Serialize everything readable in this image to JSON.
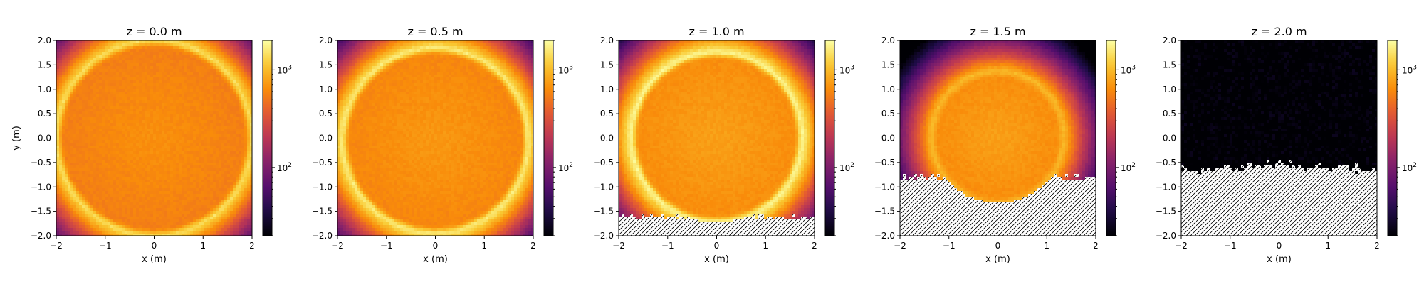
{
  "figure": {
    "xlabel": "x (m)",
    "ylabel": "y (m)",
    "colormap": "inferno",
    "colorbar_scale": "log",
    "colorbar_ticks": [
      {
        "value": 100,
        "label": "10",
        "exp": "2"
      },
      {
        "value": 1000,
        "label": "10",
        "exp": "3"
      }
    ],
    "colorbar_range": [
      20,
      2000
    ],
    "masked_color": "#ffffff",
    "masked_hatch_color": "#000000"
  },
  "chart_data": [
    {
      "type": "heatmap",
      "title": "z = 0.0 m",
      "xlabel": "x (m)",
      "ylabel": "y (m)",
      "xlim": [
        -2,
        2
      ],
      "ylim": [
        -2,
        2
      ],
      "xticks": [
        -2,
        -1,
        0,
        1,
        2
      ],
      "yticks": [
        -2.0,
        -1.5,
        -1.0,
        -0.5,
        0.0,
        0.5,
        1.0,
        1.5,
        2.0
      ],
      "disk": {
        "center": [
          0,
          0
        ],
        "radius": 2.0,
        "interior_value": 600,
        "rim_value": 1400
      },
      "outer_halo_value": 60,
      "masked_below_y": null
    },
    {
      "type": "heatmap",
      "title": "z = 0.5 m",
      "xlabel": "x (m)",
      "ylabel": "",
      "xlim": [
        -2,
        2
      ],
      "ylim": [
        -2,
        2
      ],
      "xticks": [
        -2,
        -1,
        0,
        1,
        2
      ],
      "yticks": [
        -2.0,
        -1.5,
        -1.0,
        -0.5,
        0.0,
        0.5,
        1.0,
        1.5,
        2.0
      ],
      "disk": {
        "center": [
          0,
          -0.05
        ],
        "radius": 1.9,
        "interior_value": 650,
        "rim_value": 1600
      },
      "outer_halo_value": 50,
      "masked_below_y": null
    },
    {
      "type": "heatmap",
      "title": "z = 1.0 m",
      "xlabel": "x (m)",
      "ylabel": "",
      "xlim": [
        -2,
        2
      ],
      "ylim": [
        -2,
        2
      ],
      "xticks": [
        -2,
        -1,
        0,
        1,
        2
      ],
      "yticks": [
        -2.0,
        -1.5,
        -1.0,
        -0.5,
        0.0,
        0.5,
        1.0,
        1.5,
        2.0
      ],
      "disk": {
        "center": [
          0,
          0.02
        ],
        "radius": 1.75,
        "interior_value": 700,
        "rim_value": 1800
      },
      "outer_halo_value": 40,
      "masked_below_y": -1.6
    },
    {
      "type": "heatmap",
      "title": "z = 1.5 m",
      "xlabel": "x (m)",
      "ylabel": "",
      "xlim": [
        -2,
        2
      ],
      "ylim": [
        -2,
        2
      ],
      "xticks": [
        -2,
        -1,
        0,
        1,
        2
      ],
      "yticks": [
        -2.0,
        -1.5,
        -1.0,
        -0.5,
        0.0,
        0.5,
        1.0,
        1.5,
        2.0
      ],
      "disk": {
        "center": [
          0,
          0.02
        ],
        "radius": 1.35,
        "interior_value": 700,
        "rim_value": 1000
      },
      "outer_halo_value": 35,
      "masked_below_y": -0.8
    },
    {
      "type": "heatmap",
      "title": "z = 2.0 m",
      "xlabel": "x (m)",
      "ylabel": "",
      "xlim": [
        -2,
        2
      ],
      "ylim": [
        -2,
        2
      ],
      "xticks": [
        -2,
        -1,
        0,
        1,
        2
      ],
      "yticks": [
        -2.0,
        -1.5,
        -1.0,
        -0.5,
        0.0,
        0.5,
        1.0,
        1.5,
        2.0
      ],
      "disk": null,
      "outer_halo_value": 20,
      "masked_below_y": -0.55
    }
  ]
}
